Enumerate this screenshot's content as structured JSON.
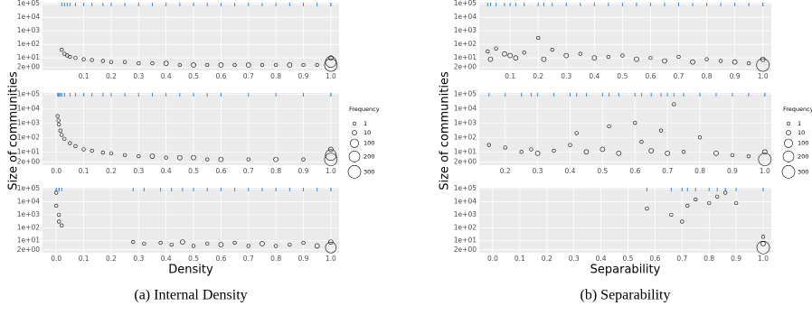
{
  "chart_data": [
    {
      "type": "scatter",
      "caption": "(a) Internal Density",
      "xlabel": "Density",
      "ylabel": "Size of communities",
      "legend_title": "Frequency",
      "size_legend": [
        1,
        10,
        100,
        200,
        300
      ],
      "log_y": true,
      "ylim": [
        1.2,
        120000
      ],
      "yticks": [
        {
          "value": 2,
          "label": "2e+00"
        },
        {
          "value": 10,
          "label": "1e+01"
        },
        {
          "value": 100,
          "label": "1e+02"
        },
        {
          "value": 1000,
          "label": "1e+03"
        },
        {
          "value": 10000,
          "label": "1e+04"
        },
        {
          "value": 100000,
          "label": "1e+05"
        }
      ],
      "panels": [
        {
          "xlim": [
            -0.05,
            1.03
          ],
          "xticks": [
            0.1,
            0.2,
            0.3,
            0.4,
            0.5,
            0.6,
            0.7,
            0.8,
            0.9,
            {
              "value": 1,
              "label": "1.0"
            }
          ],
          "x": [
            0.02,
            0.03,
            0.04,
            0.05,
            0.07,
            0.1,
            0.13,
            0.17,
            0.2,
            0.25,
            0.3,
            0.35,
            0.4,
            0.45,
            0.5,
            0.55,
            0.6,
            0.65,
            0.7,
            0.75,
            0.8,
            0.85,
            0.9,
            0.95,
            1.0,
            1.0,
            1.0
          ],
          "y": [
            40,
            20,
            15,
            12,
            10,
            8,
            7,
            6,
            5,
            5,
            4,
            4,
            4,
            3,
            3,
            3,
            3,
            3,
            3,
            3,
            3,
            3,
            3,
            3,
            3,
            5,
            10
          ],
          "sizes": [
            1,
            1,
            1,
            1,
            1,
            1,
            1,
            1,
            1,
            1,
            1,
            1,
            10,
            1,
            10,
            1,
            10,
            1,
            10,
            1,
            1,
            10,
            1,
            1,
            300,
            200,
            10
          ]
        },
        {
          "xlim": [
            -0.05,
            1.03
          ],
          "xticks": [
            {
              "value": 0,
              "label": "0.0"
            },
            0.1,
            0.2,
            0.3,
            0.4,
            0.5,
            0.6,
            0.7,
            0.8,
            0.9,
            {
              "value": 1,
              "label": "1.0"
            }
          ],
          "x": [
            0.005,
            0.008,
            0.01,
            0.015,
            0.02,
            0.03,
            0.05,
            0.07,
            0.1,
            0.13,
            0.17,
            0.2,
            0.25,
            0.3,
            0.35,
            0.4,
            0.45,
            0.5,
            0.55,
            0.6,
            0.7,
            0.8,
            0.9,
            1.0,
            1.0,
            1.0
          ],
          "y": [
            3000,
            1500,
            800,
            300,
            150,
            80,
            40,
            25,
            15,
            12,
            9,
            8,
            6,
            5,
            5,
            4,
            4,
            4,
            3,
            3,
            3,
            3,
            3,
            3,
            6,
            15
          ],
          "sizes": [
            1,
            1,
            1,
            1,
            1,
            1,
            1,
            1,
            1,
            1,
            1,
            1,
            1,
            1,
            10,
            1,
            10,
            10,
            1,
            10,
            1,
            10,
            1,
            300,
            200,
            10
          ]
        },
        {
          "xlim": [
            -0.05,
            1.03
          ],
          "xticks": [
            {
              "value": 0,
              "label": "0.0"
            },
            0.1,
            0.2,
            0.3,
            0.4,
            0.5,
            0.6,
            0.7,
            0.8,
            0.9,
            {
              "value": 1,
              "label": "1.0"
            }
          ],
          "x": [
            0.0,
            0.0,
            0.01,
            0.01,
            0.02,
            0.28,
            0.32,
            0.38,
            0.42,
            0.46,
            0.5,
            0.55,
            0.6,
            0.65,
            0.7,
            0.75,
            0.8,
            0.85,
            0.9,
            0.95,
            1.0,
            1.0
          ],
          "y": [
            50000,
            5000,
            1000,
            300,
            150,
            8,
            6,
            7,
            5,
            8,
            4,
            6,
            5,
            7,
            4,
            6,
            4,
            5,
            7,
            4,
            3,
            8
          ],
          "sizes": [
            1,
            1,
            1,
            1,
            1,
            1,
            1,
            1,
            1,
            10,
            1,
            1,
            10,
            1,
            1,
            10,
            1,
            1,
            1,
            10,
            200,
            10
          ]
        }
      ]
    },
    {
      "type": "scatter",
      "caption": "(b) Separability",
      "xlabel": "Separability",
      "ylabel": "Size of communities",
      "legend_title": "Frequency",
      "size_legend": [
        1,
        10,
        100,
        200,
        300
      ],
      "log_y": true,
      "ylim": [
        1.2,
        120000
      ],
      "yticks": [
        {
          "value": 2,
          "label": "2e+00"
        },
        {
          "value": 10,
          "label": "1e+01"
        },
        {
          "value": 100,
          "label": "1e+02"
        },
        {
          "value": 1000,
          "label": "1e+03"
        },
        {
          "value": 10000,
          "label": "1e+04"
        },
        {
          "value": 100000,
          "label": "1e+05"
        }
      ],
      "panels": [
        {
          "xlim": [
            -0.01,
            1.03
          ],
          "xticks": [
            0.1,
            0.2,
            0.3,
            0.4,
            0.5,
            0.6,
            0.7,
            0.8,
            0.9,
            {
              "value": 1,
              "label": "1.0"
            }
          ],
          "x": [
            0.02,
            0.03,
            0.05,
            0.08,
            0.1,
            0.12,
            0.15,
            0.2,
            0.22,
            0.25,
            0.3,
            0.35,
            0.4,
            0.45,
            0.5,
            0.55,
            0.6,
            0.65,
            0.7,
            0.75,
            0.8,
            0.85,
            0.9,
            0.95,
            1.0,
            1.0
          ],
          "y": [
            30,
            8,
            50,
            20,
            15,
            10,
            25,
            300,
            8,
            40,
            15,
            20,
            10,
            12,
            15,
            8,
            10,
            6,
            12,
            5,
            8,
            6,
            5,
            4,
            3,
            8
          ],
          "sizes": [
            1,
            10,
            1,
            10,
            10,
            10,
            1,
            1,
            10,
            1,
            10,
            1,
            10,
            1,
            1,
            10,
            1,
            10,
            1,
            10,
            1,
            1,
            10,
            1,
            300,
            10
          ]
        },
        {
          "xlim": [
            0.12,
            1.02
          ],
          "xticks": [
            0.2,
            0.3,
            0.4,
            0.5,
            0.6,
            0.7,
            0.8,
            0.9,
            {
              "value": 1,
              "label": "1.0"
            }
          ],
          "x": [
            0.15,
            0.2,
            0.25,
            0.28,
            0.3,
            0.35,
            0.4,
            0.42,
            0.45,
            0.5,
            0.52,
            0.55,
            0.6,
            0.62,
            0.65,
            0.68,
            0.7,
            0.72,
            0.75,
            0.8,
            0.85,
            0.9,
            0.95,
            1.0,
            1.0
          ],
          "y": [
            30,
            20,
            10,
            15,
            8,
            12,
            30,
            200,
            10,
            15,
            600,
            8,
            1000,
            50,
            12,
            300,
            8,
            20000,
            10,
            100,
            8,
            6,
            5,
            3,
            10
          ],
          "sizes": [
            1,
            1,
            1,
            1,
            10,
            1,
            1,
            1,
            10,
            10,
            1,
            10,
            1,
            1,
            10,
            1,
            10,
            1,
            1,
            1,
            10,
            1,
            1,
            300,
            10
          ]
        },
        {
          "xlim": [
            -0.05,
            1.03
          ],
          "xticks": [
            {
              "value": 0,
              "label": "0.0"
            },
            0.1,
            0.2,
            0.3,
            0.4,
            0.5,
            0.6,
            0.7,
            0.8,
            0.9,
            {
              "value": 1,
              "label": "1.0"
            }
          ],
          "x": [
            0.57,
            0.66,
            0.7,
            0.72,
            0.75,
            0.8,
            0.83,
            0.86,
            0.9,
            1.0,
            1.0,
            1.0
          ],
          "y": [
            3000,
            1000,
            300,
            5000,
            15000,
            8000,
            25000,
            50000,
            8000,
            3,
            6,
            20
          ],
          "sizes": [
            1,
            1,
            1,
            1,
            1,
            1,
            1,
            1,
            1,
            300,
            10,
            1
          ]
        }
      ]
    }
  ]
}
